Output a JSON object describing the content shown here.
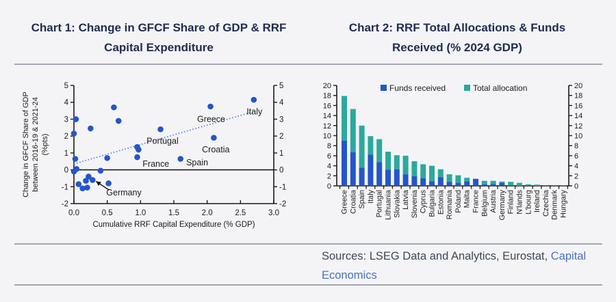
{
  "header": {
    "chart1_title_line1": "Chart 1: Change in GFCF Share of GDP & RRF",
    "chart1_title_line2": "Capital Expenditure",
    "chart2_title_line1": "Chart 2: RRF Total Allocations & Funds",
    "chart2_title_line2": "Received (% 2024 GDP)"
  },
  "footer": {
    "sources_prefix": "Sources: LSEG Data and Analytics, Eurostat, ",
    "sources_link": "Capital Economics"
  },
  "colors": {
    "background": "#f4f4f6",
    "title_navy": "#1f2c50",
    "axis_black": "#1a1a1a",
    "point_blue": "#2356c9",
    "trend_blue": "#4d79e6",
    "bar_blue": "#2356c9",
    "bar_teal": "#2ba99d",
    "source_text": "#3d4657",
    "source_link": "#4a72c0"
  },
  "chart_data": [
    {
      "type": "scatter",
      "title": "Chart 1: Change in GFCF Share of GDP & RRF Capital Expenditure",
      "xlabel": "Cumulative RRF Capital Expenditure (% GDP)",
      "ylabel": "Change in GFCF Share of GDP between 2016-19 & 2021-24 (%pts)",
      "ylabel_lines": [
        "Change in GFCF Share of GDP",
        "between 2016-19 & 2021-24",
        "(%pts)"
      ],
      "xlim": [
        0.0,
        3.0
      ],
      "ylim": [
        -2,
        5
      ],
      "xticks": [
        0.0,
        0.5,
        1.0,
        1.5,
        2.0,
        2.5,
        3.0
      ],
      "yticks": [
        -2,
        -1,
        0,
        1,
        2,
        3,
        4,
        5
      ],
      "grid": false,
      "point_color": "#2356c9",
      "points": [
        [
          0.0,
          2.15
        ],
        [
          0.03,
          3.0
        ],
        [
          0.02,
          0.65
        ],
        [
          0.04,
          0.05
        ],
        [
          0.0,
          -0.1
        ],
        [
          0.07,
          -0.85
        ],
        [
          0.13,
          -1.1
        ],
        [
          0.18,
          -0.65
        ],
        [
          0.2,
          -1.05
        ],
        [
          0.22,
          -0.4
        ],
        [
          0.25,
          2.45
        ],
        [
          0.28,
          -0.6
        ],
        [
          0.4,
          -0.05
        ],
        [
          0.5,
          0.7
        ],
        [
          0.52,
          -0.8
        ],
        [
          0.6,
          3.7
        ],
        [
          0.67,
          2.9
        ],
        [
          0.95,
          1.35
        ],
        [
          0.97,
          1.2
        ],
        [
          0.95,
          0.75
        ],
        [
          1.3,
          2.4
        ],
        [
          1.6,
          0.65
        ],
        [
          2.05,
          3.75
        ],
        [
          2.1,
          1.9
        ],
        [
          2.7,
          4.15
        ]
      ],
      "trendline": {
        "x1": 0.0,
        "y1": 0.35,
        "x2": 2.7,
        "y2": 3.45,
        "style": "dotted",
        "color": "#4d79e6"
      },
      "annotations": [
        {
          "label": "Greece",
          "x": 2.06,
          "y": 3.0
        },
        {
          "label": "Italy",
          "x": 2.71,
          "y": 3.45
        },
        {
          "label": "Portugal",
          "x": 1.33,
          "y": 1.7
        },
        {
          "label": "Croatia",
          "x": 2.13,
          "y": 1.2
        },
        {
          "label": "France",
          "x": 1.23,
          "y": 0.35
        },
        {
          "label": "Spain",
          "x": 1.85,
          "y": 0.42
        },
        {
          "label": "Germany",
          "x": 0.75,
          "y": -1.35
        }
      ],
      "arrow": {
        "x1": 0.53,
        "y1": -1.2,
        "x2": 0.33,
        "y2": -0.68
      }
    },
    {
      "type": "bar",
      "stacked": true,
      "title": "Chart 2: RRF Total Allocations & Funds Received (% 2024 GDP)",
      "ylim": [
        0,
        20
      ],
      "yticks": [
        0,
        2,
        4,
        6,
        8,
        10,
        12,
        14,
        16,
        18,
        20
      ],
      "grid": false,
      "legend_position": "top-inside",
      "legend": [
        {
          "label": "Funds received",
          "color": "#2356c9"
        },
        {
          "label": "Total allocation",
          "color": "#2ba99d"
        }
      ],
      "categories": [
        "Greece",
        "Croatia",
        "Spain",
        "Italy",
        "Portugal",
        "Lithuania",
        "Slovakia",
        "Latvia",
        "Slovenia",
        "Cyprus",
        "Bulgaria",
        "Estonia",
        "Romania",
        "Poland",
        "Malta",
        "France",
        "Belgium",
        "Austria",
        "Germany",
        "Finland",
        "N'lands",
        "L'bourg",
        "Ireland",
        "Czechia",
        "Denmark",
        "Hungary"
      ],
      "series": [
        {
          "name": "Funds received",
          "color": "#2356c9",
          "values": [
            9.0,
            6.7,
            3.6,
            6.2,
            4.7,
            3.2,
            3.3,
            2.3,
            1.9,
            1.5,
            0.9,
            1.7,
            0.8,
            0.6,
            0.9,
            1.4,
            0.3,
            0.35,
            0.6,
            0.1,
            0.0,
            0.1,
            0.0,
            0.05,
            0.05,
            0.0
          ]
        },
        {
          "name": "Total allocation (total bar height)",
          "color": "#2ba99d",
          "values": [
            17.9,
            15.3,
            12.0,
            9.9,
            9.3,
            6.8,
            6.1,
            6.0,
            4.9,
            4.3,
            4.0,
            3.3,
            2.3,
            2.1,
            1.6,
            1.4,
            1.0,
            1.0,
            0.85,
            0.8,
            0.6,
            0.3,
            0.25,
            0.1,
            0.1,
            0.05
          ]
        }
      ]
    }
  ]
}
